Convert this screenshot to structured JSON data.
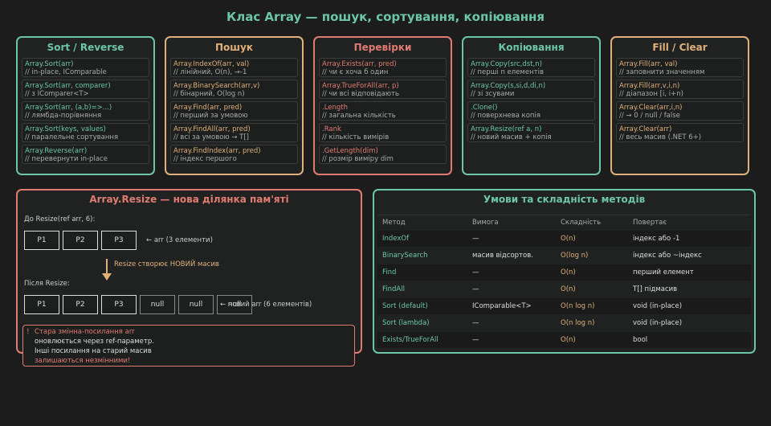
{
  "header": {
    "title": "Клас Array — пошук, сортування, копіювання"
  },
  "cards": [
    {
      "title": "Sort / Reverse",
      "items": [
        {
          "code": "Array.Sort(arr)",
          "note": "// in-place, IComparable"
        },
        {
          "code": "Array.Sort(arr, comparer)",
          "note": "// з IComparer<T>"
        },
        {
          "code": "Array.Sort(arr, (a,b)=>...)",
          "note": "// лямбда-порівняння"
        },
        {
          "code": "Array.Sort(keys, values)",
          "note": "// паралельне сортування"
        },
        {
          "code": "Array.Reverse(arr)",
          "note": "// перевернути in-place"
        }
      ]
    },
    {
      "title": "Пошук",
      "items": [
        {
          "code": "Array.IndexOf(arr, val)",
          "note": "// лінійний, O(n), →-1"
        },
        {
          "code": "Array.BinarySearch(arr,v)",
          "note": "// бінарний, O(log n)"
        },
        {
          "code": "Array.Find(arr, pred)",
          "note": "// перший за умовою"
        },
        {
          "code": "Array.FindAll(arr, pred)",
          "note": "// всі за умовою → T[]"
        },
        {
          "code": "Array.FindIndex(arr, pred)",
          "note": "// індекс першого"
        }
      ]
    },
    {
      "title": "Перевірки",
      "items": [
        {
          "code": "Array.Exists(arr, pred)",
          "note": "// чи є хоча б один"
        },
        {
          "code": "Array.TrueForAll(arr, p)",
          "note": "// чи всі відповідають"
        },
        {
          "code": ".Length",
          "note": "// загальна кількість"
        },
        {
          "code": ".Rank",
          "note": "// кількість вимірів"
        },
        {
          "code": ".GetLength(dim)",
          "note": "// розмір виміру dim"
        }
      ]
    },
    {
      "title": "Копіювання",
      "items": [
        {
          "code": "Array.Copy(src,dst,n)",
          "note": "// перші n елементів"
        },
        {
          "code": "Array.Copy(s,si,d,di,n)",
          "note": "// зі зсувами"
        },
        {
          "code": ".Clone()",
          "note": "// поверхнева копія"
        },
        {
          "code": "Array.Resize(ref a, n)",
          "note": "// новий масив + копія"
        }
      ]
    },
    {
      "title": "Fill / Clear",
      "items": [
        {
          "code": "Array.Fill(arr, val)",
          "note": "// заповнити значенням"
        },
        {
          "code": "Array.Fill(arr,v,i,n)",
          "note": "// діапазон [i, i+n)"
        },
        {
          "code": "Array.Clear(arr,i,n)",
          "note": "// → 0 / null / false"
        },
        {
          "code": "Array.Clear(arr)",
          "note": "// весь масив (.NET 6+)"
        }
      ]
    }
  ],
  "resize": {
    "title": "Array.Resize — нова ділянка пам'яті",
    "before_label": "До Resize(ref arr, 6):",
    "before_cells": [
      "P1",
      "P2",
      "P3"
    ],
    "before_pointer": "← arr (3 елементи)",
    "arrow_label": "Resize створює НОВИЙ масив",
    "after_label": "Після Resize:",
    "after_cells": [
      "P1",
      "P2",
      "P3",
      "null",
      "null",
      "null"
    ],
    "after_pointer": "← новий arr (6 елементів)",
    "warning": {
      "icon": "!",
      "lines": [
        "Стара змінна-посилання arr",
        "оновлюється через ref-параметр.",
        "Інші посилання на старий масив",
        "залишаються незмінними!"
      ]
    }
  },
  "table": {
    "title": "Умови та складність методів",
    "columns": [
      "Метод",
      "Вимога",
      "Складність",
      "Повертає"
    ],
    "rows": [
      [
        "IndexOf",
        "—",
        "O(n)",
        "індекс або -1"
      ],
      [
        "BinarySearch",
        "масив відсортов.",
        "O(log n)",
        "індекс або ~індекс"
      ],
      [
        "Find",
        "—",
        "O(n)",
        "перший елемент"
      ],
      [
        "FindAll",
        "—",
        "O(n)",
        "T[] підмасив"
      ],
      [
        "Sort (default)",
        "IComparable<T>",
        "O(n log n)",
        "void (in-place)"
      ],
      [
        "Sort (lambda)",
        "—",
        "O(n log n)",
        "void (in-place)"
      ],
      [
        "Exists/TrueForAll",
        "—",
        "O(n)",
        "bool"
      ]
    ]
  }
}
